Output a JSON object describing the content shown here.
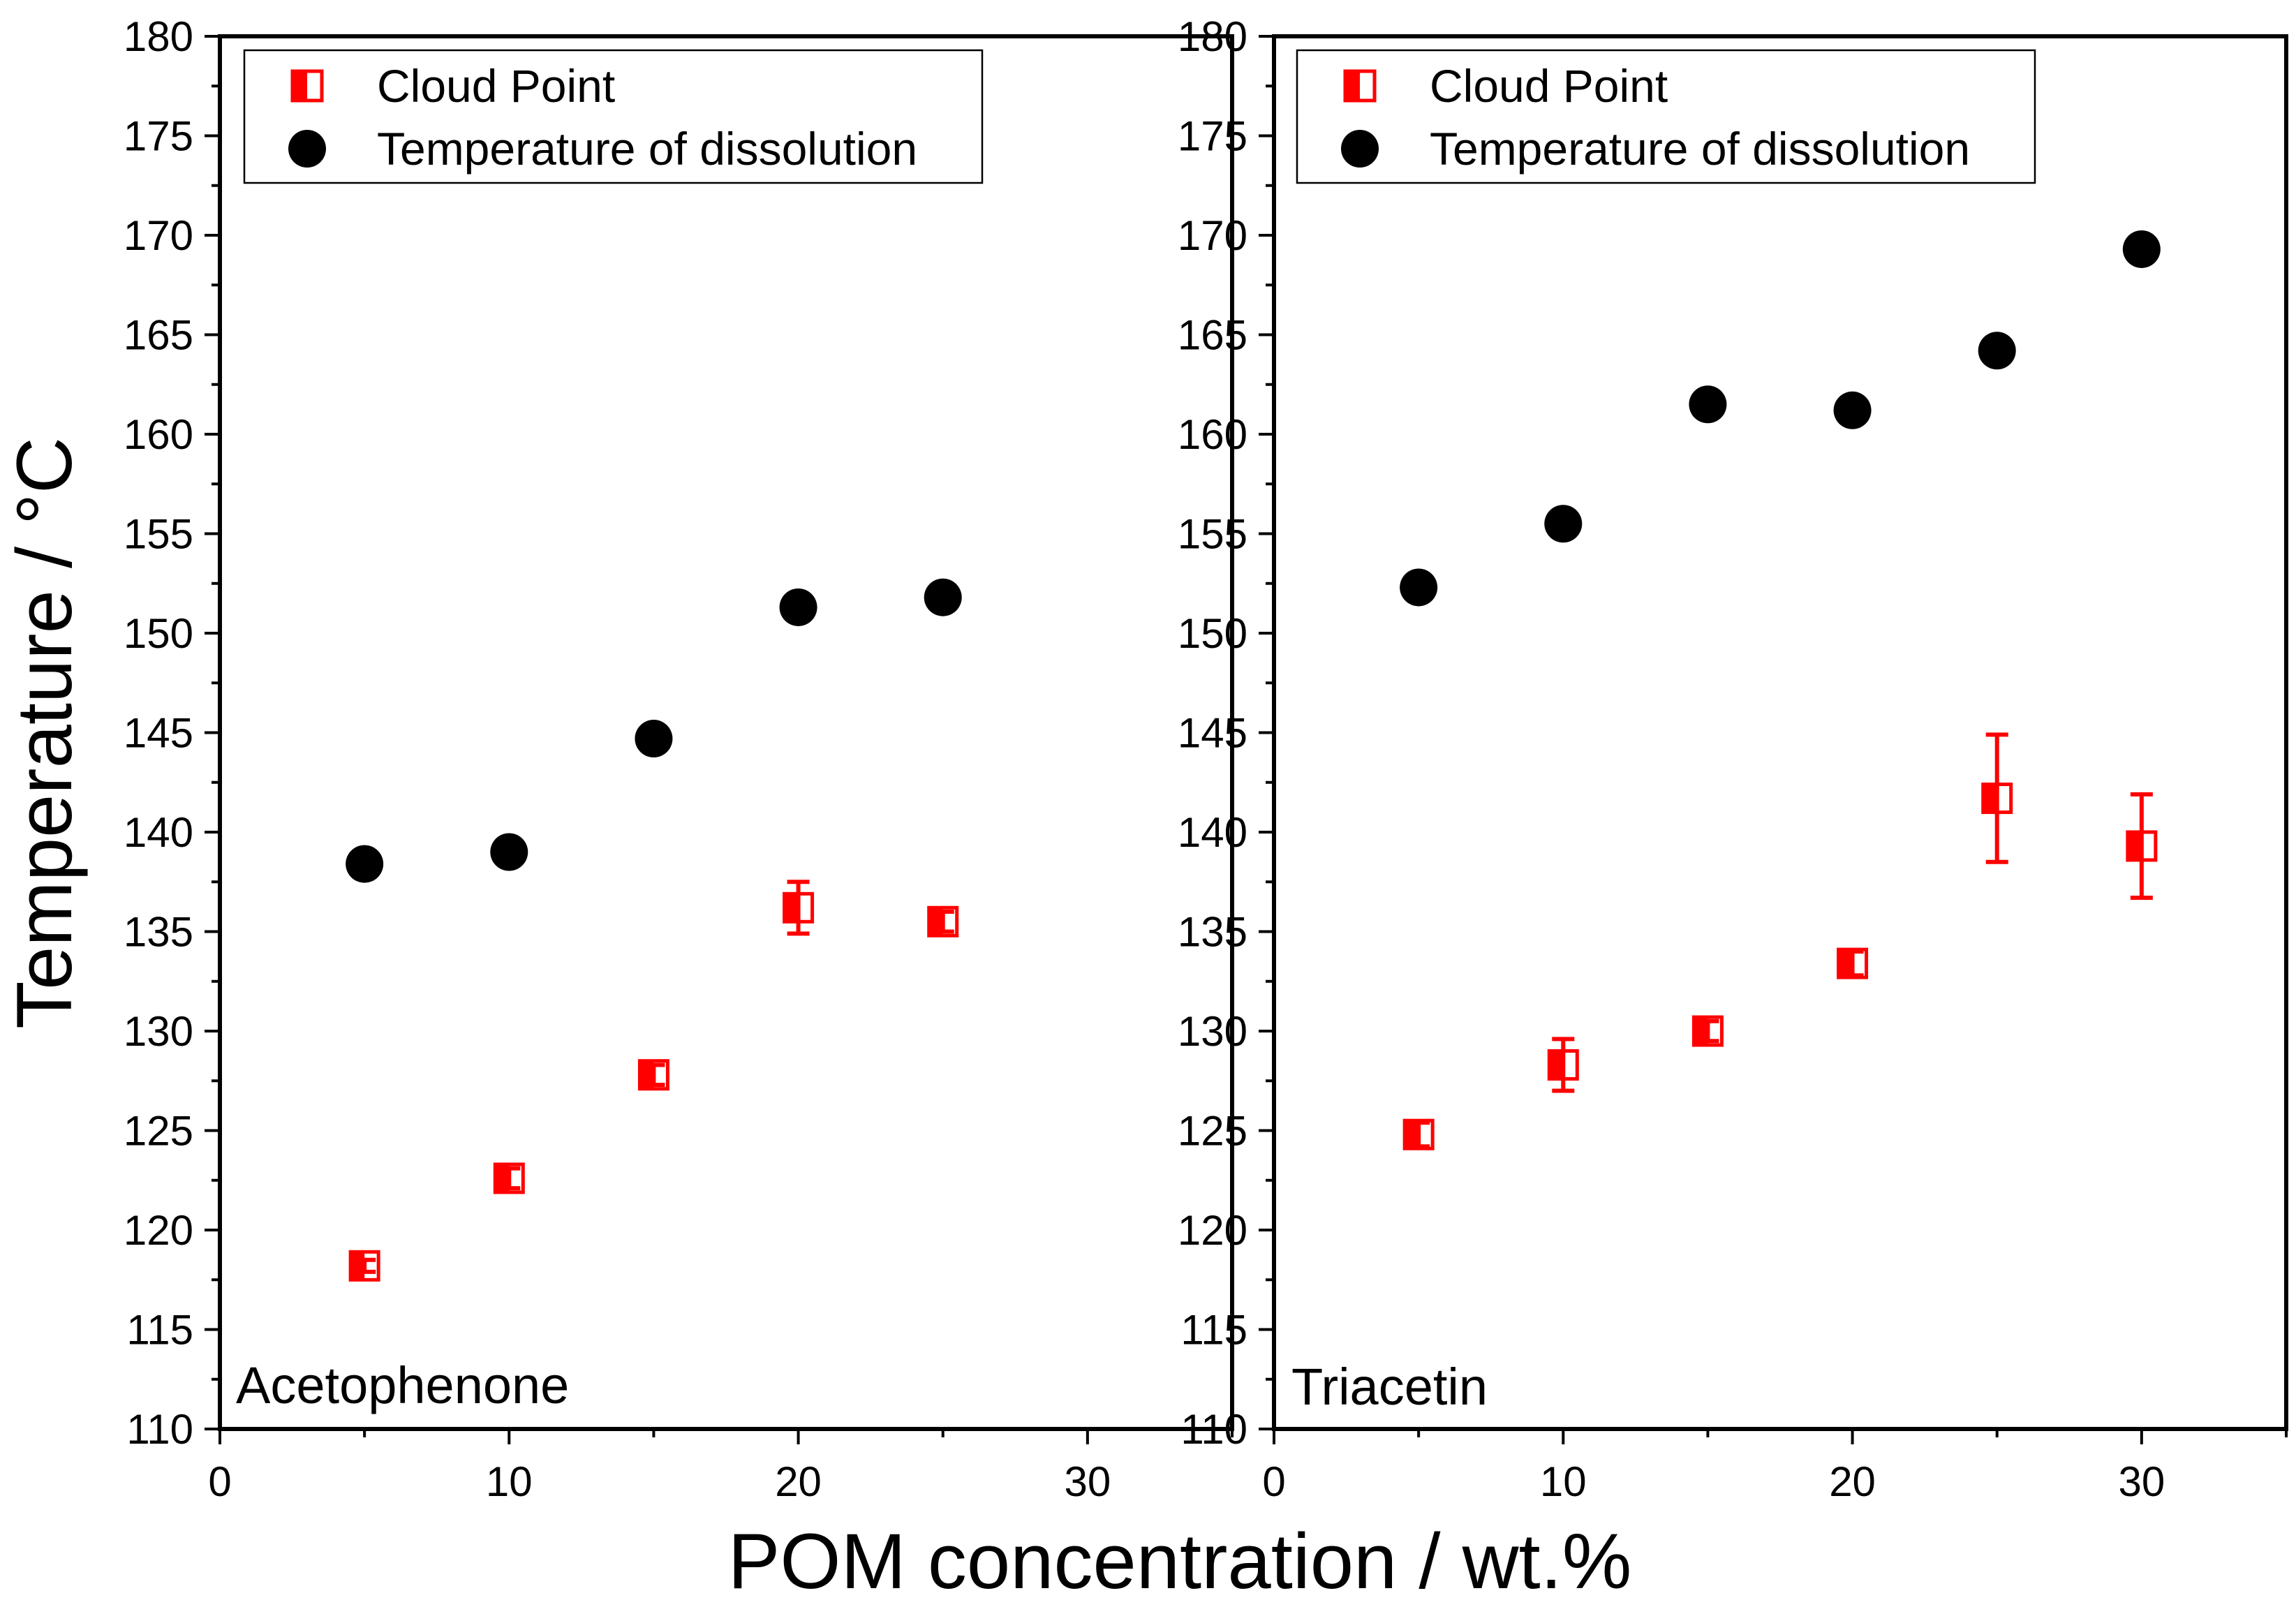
{
  "figure": {
    "ylabel": "Temperature / °C",
    "xlabel": "POM concentration / wt.%"
  },
  "legend": {
    "cloud_point": "Cloud Point",
    "dissolution": "Temperature of dissolution"
  },
  "colors": {
    "cloud_point": "#ff0000",
    "dissolution": "#000000"
  },
  "chart_data": [
    {
      "type": "scatter",
      "panel_label": "Acetophenone",
      "xlim": [
        0,
        35
      ],
      "ylim": [
        110,
        180
      ],
      "xticks": [
        0,
        10,
        20,
        30
      ],
      "yticks": [
        110,
        115,
        120,
        125,
        130,
        135,
        140,
        145,
        150,
        155,
        160,
        165,
        170,
        175,
        180
      ],
      "series": [
        {
          "name": "Cloud Point",
          "x": [
            5,
            10,
            15,
            20,
            25
          ],
          "y": [
            118.2,
            122.6,
            127.8,
            136.2,
            135.5
          ],
          "yerr": [
            0.3,
            0.5,
            0.5,
            1.3,
            0.5
          ]
        },
        {
          "name": "Temperature of dissolution",
          "x": [
            5,
            10,
            15,
            20,
            25
          ],
          "y": [
            138.4,
            139.0,
            144.7,
            151.3,
            151.8
          ]
        }
      ]
    },
    {
      "type": "scatter",
      "panel_label": "Triacetin",
      "xlim": [
        0,
        35
      ],
      "ylim": [
        110,
        180
      ],
      "xticks": [
        0,
        10,
        20,
        30
      ],
      "yticks": [
        110,
        115,
        120,
        125,
        130,
        135,
        140,
        145,
        150,
        155,
        160,
        165,
        170,
        175,
        180
      ],
      "series": [
        {
          "name": "Cloud Point",
          "x": [
            5,
            10,
            15,
            20,
            25,
            30
          ],
          "y": [
            124.8,
            128.3,
            130.0,
            133.4,
            141.7,
            139.3
          ],
          "yerr": [
            0.6,
            1.3,
            0.5,
            0.6,
            3.2,
            2.6
          ]
        },
        {
          "name": "Temperature of dissolution",
          "x": [
            5,
            10,
            15,
            20,
            25,
            30
          ],
          "y": [
            152.3,
            155.5,
            161.5,
            161.2,
            164.2,
            169.3
          ]
        }
      ]
    }
  ]
}
